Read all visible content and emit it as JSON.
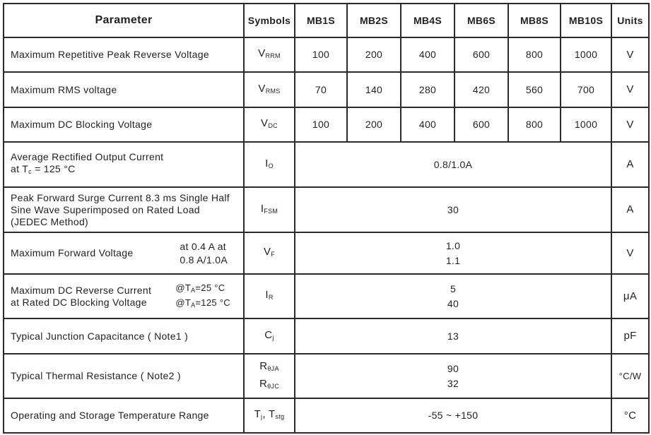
{
  "header": {
    "parameter": "Parameter",
    "symbols": "Symbols",
    "models": [
      "MB1S",
      "MB2S",
      "MB4S",
      "MB6S",
      "MB8S",
      "MB10S"
    ],
    "units": "Units"
  },
  "rows": [
    {
      "param": "Maximum Repetitive Peak Reverse Voltage",
      "sym": "V",
      "sub": "RRM",
      "values": [
        "100",
        "200",
        "400",
        "600",
        "800",
        "1000"
      ],
      "unit": "V"
    },
    {
      "param": "Maximum RMS voltage",
      "sym": "V",
      "sub": "RMS",
      "values": [
        "70",
        "140",
        "280",
        "420",
        "560",
        "700"
      ],
      "unit": "V"
    },
    {
      "param": "Maximum DC Blocking Voltage",
      "sym": "V",
      "sub": "DC",
      "values": [
        "100",
        "200",
        "400",
        "600",
        "800",
        "1000"
      ],
      "unit": "V"
    },
    {
      "param": "Average Rectified Output Current",
      "param2": "at T",
      "param2_sub": "c",
      "param2_rest": " = 125 °C",
      "sym": "I",
      "sub": "O",
      "value": "0.8/1.0A",
      "unit": "A"
    },
    {
      "param": "Peak Forward Surge Current 8.3 ms Single Half",
      "param2": "Sine Wave Superimposed on Rated Load",
      "param3": "(JEDEC Method)",
      "sym": "I",
      "sub": "FSM",
      "value": "30",
      "unit": "A"
    },
    {
      "param": "Maximum  Forward Voltage",
      "cond1": "at 0.4 A at",
      "cond2": "0.8 A/1.0A",
      "sym": "V",
      "sub": "F",
      "value1": "1.0",
      "value2": "1.1",
      "unit": "V"
    },
    {
      "param": "Maximum DC Reverse Current",
      "param2": "at Rated DC Blocking Voltage",
      "cond1": "@T",
      "cond1_sub": "A",
      "cond1_rest": "=25 °C",
      "cond2": "@T",
      "cond2_sub": "A",
      "cond2_rest": "=125 °C",
      "sym": "I",
      "sub": "R",
      "value1": "5",
      "value2": "40",
      "unit": "μA"
    },
    {
      "param": "Typical Junction Capacitance ( Note1 )",
      "sym": "C",
      "sub": "j",
      "value": "13",
      "unit": "pF"
    },
    {
      "param": "Typical Thermal Resistance ( Note2 )",
      "sym": "R",
      "sub": "θJA",
      "sym2": "R",
      "sub2": "θJC",
      "value1": "90",
      "value2": "32",
      "unit": "°C/W"
    },
    {
      "param": "Operating and Storage Temperature Range",
      "sym": "T",
      "sub": "j",
      "sym_mid": ", T",
      "sub2": "stg",
      "value": "-55 ~ +150",
      "unit": "°C"
    }
  ]
}
